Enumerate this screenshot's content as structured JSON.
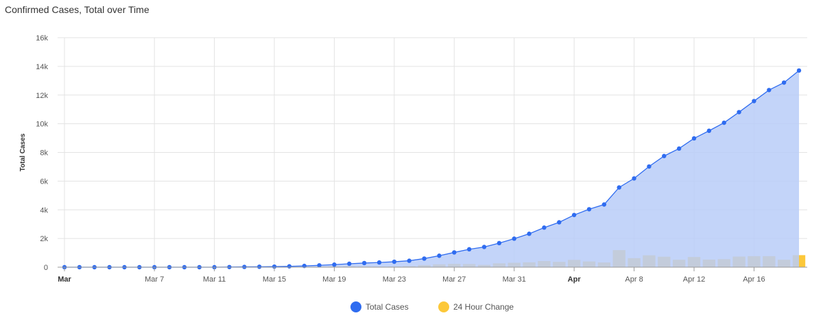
{
  "chart_data": {
    "type": "line",
    "title": "Confirmed Cases, Total over Time",
    "ylabel": "Total Cases",
    "ylim": [
      0,
      16000
    ],
    "y_ticks": [
      {
        "value": 0,
        "label": "0"
      },
      {
        "value": 2000,
        "label": "2k"
      },
      {
        "value": 4000,
        "label": "4k"
      },
      {
        "value": 6000,
        "label": "6k"
      },
      {
        "value": 8000,
        "label": "8k"
      },
      {
        "value": 10000,
        "label": "10k"
      },
      {
        "value": 12000,
        "label": "12k"
      },
      {
        "value": 14000,
        "label": "14k"
      },
      {
        "value": 16000,
        "label": "16k"
      }
    ],
    "x_ticks": [
      {
        "date": "2020-03-01",
        "label": "Mar",
        "bold": true
      },
      {
        "date": "2020-03-07",
        "label": "Mar 7",
        "bold": false
      },
      {
        "date": "2020-03-11",
        "label": "Mar 11",
        "bold": false
      },
      {
        "date": "2020-03-15",
        "label": "Mar 15",
        "bold": false
      },
      {
        "date": "2020-03-19",
        "label": "Mar 19",
        "bold": false
      },
      {
        "date": "2020-03-23",
        "label": "Mar 23",
        "bold": false
      },
      {
        "date": "2020-03-27",
        "label": "Mar 27",
        "bold": false
      },
      {
        "date": "2020-03-31",
        "label": "Mar 31",
        "bold": false
      },
      {
        "date": "2020-04-04",
        "label": "Apr",
        "bold": true
      },
      {
        "date": "2020-04-08",
        "label": "Apr 8",
        "bold": false
      },
      {
        "date": "2020-04-12",
        "label": "Apr 12",
        "bold": false
      },
      {
        "date": "2020-04-16",
        "label": "Apr 16",
        "bold": false
      }
    ],
    "x": [
      "2020-03-01",
      "2020-03-02",
      "2020-03-03",
      "2020-03-04",
      "2020-03-05",
      "2020-03-06",
      "2020-03-07",
      "2020-03-08",
      "2020-03-09",
      "2020-03-10",
      "2020-03-11",
      "2020-03-12",
      "2020-03-13",
      "2020-03-14",
      "2020-03-15",
      "2020-03-16",
      "2020-03-17",
      "2020-03-18",
      "2020-03-19",
      "2020-03-20",
      "2020-03-21",
      "2020-03-22",
      "2020-03-23",
      "2020-03-24",
      "2020-03-25",
      "2020-03-26",
      "2020-03-27",
      "2020-03-28",
      "2020-03-29",
      "2020-03-30",
      "2020-03-31",
      "2020-04-01",
      "2020-04-02",
      "2020-04-03",
      "2020-04-04",
      "2020-04-05",
      "2020-04-06",
      "2020-04-07",
      "2020-04-08",
      "2020-04-09",
      "2020-04-10",
      "2020-04-11",
      "2020-04-12",
      "2020-04-13",
      "2020-04-14",
      "2020-04-15",
      "2020-04-16",
      "2020-04-17",
      "2020-04-18",
      "2020-04-19"
    ],
    "series": [
      {
        "name": "Total Cases",
        "type": "area",
        "color": "#2f6cf0",
        "fill": "#b8cdf8",
        "values": [
          0,
          0,
          0,
          0,
          0,
          0,
          0,
          0,
          0,
          0,
          0,
          10,
          20,
          30,
          40,
          60,
          90,
          130,
          180,
          240,
          290,
          330,
          380,
          450,
          600,
          800,
          1030,
          1250,
          1410,
          1680,
          1990,
          2330,
          2760,
          3130,
          3640,
          4040,
          4370,
          5560,
          6190,
          7020,
          7750,
          8270,
          8980,
          9510,
          10070,
          10810,
          11580,
          12350,
          12870,
          13710
        ]
      },
      {
        "name": "24 Hour Change",
        "type": "bar",
        "color": "#fcc83a",
        "values": [
          0,
          0,
          0,
          0,
          0,
          0,
          0,
          0,
          0,
          0,
          0,
          10,
          10,
          10,
          10,
          20,
          30,
          40,
          50,
          60,
          50,
          40,
          50,
          70,
          150,
          200,
          230,
          220,
          160,
          270,
          310,
          340,
          430,
          370,
          510,
          400,
          330,
          1190,
          630,
          830,
          730,
          520,
          710,
          530,
          560,
          740,
          770,
          770,
          520,
          840
        ]
      }
    ],
    "legend": {
      "position": "bottom-center"
    },
    "grid": true
  }
}
